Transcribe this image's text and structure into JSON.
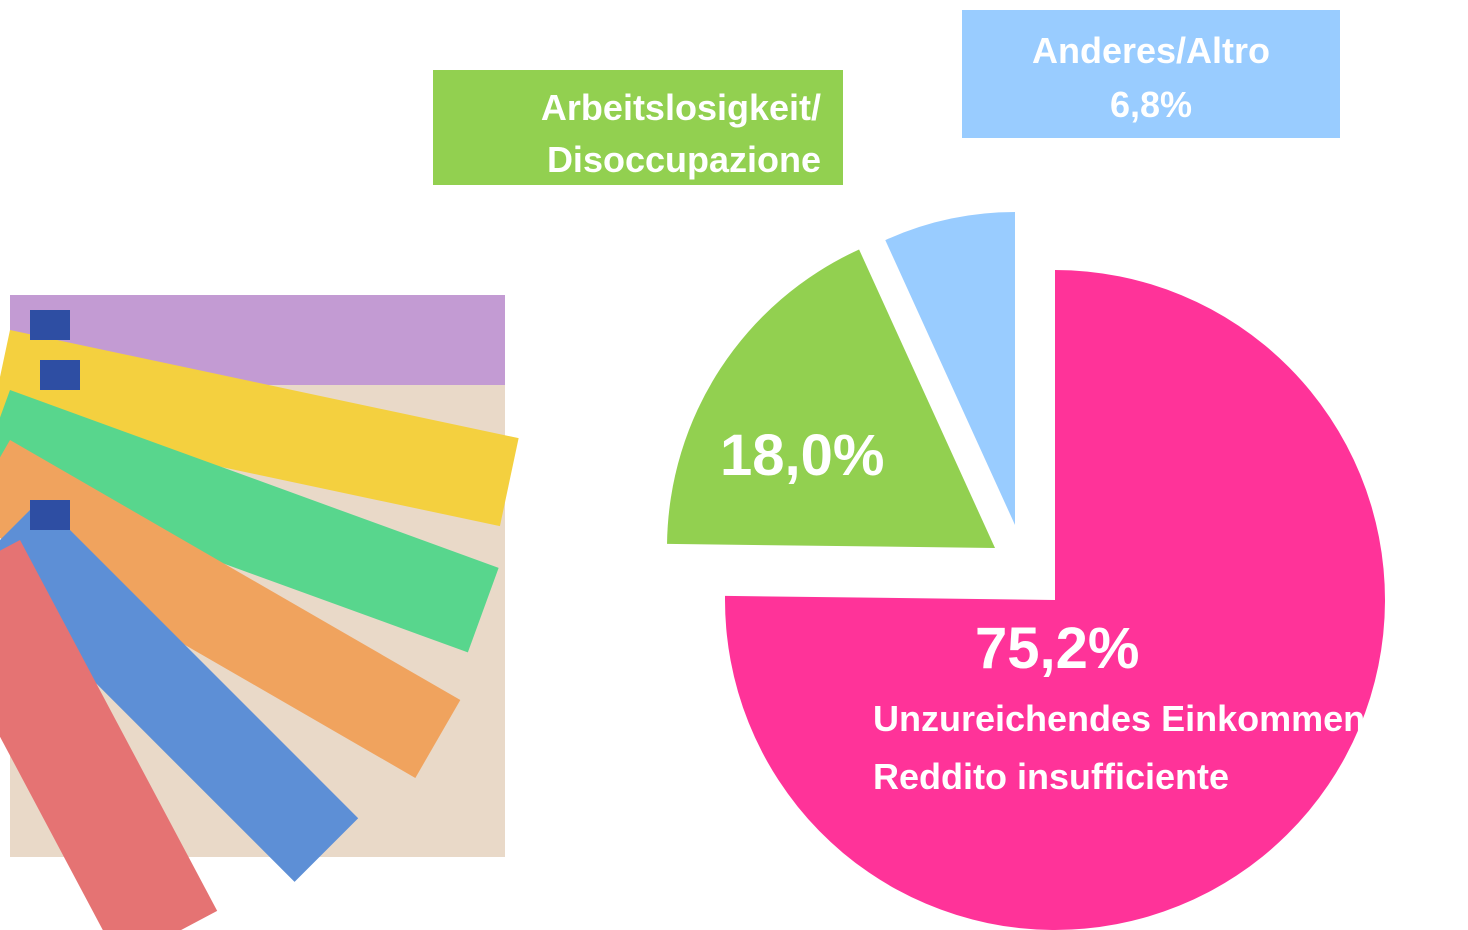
{
  "chart_data": {
    "type": "pie",
    "categories": [
      "Unzureichendes Einkommen/\nReddito insufficiente",
      "Arbeitslosigkeit/\nDisoccupazione",
      "Anderes/Altro"
    ],
    "values": [
      75.2,
      18.0,
      6.8
    ],
    "value_labels": [
      "75,2%",
      "18,0%",
      "6,8%"
    ],
    "colors": [
      "#ff3399",
      "#92d050",
      "#99ccff"
    ]
  }
}
